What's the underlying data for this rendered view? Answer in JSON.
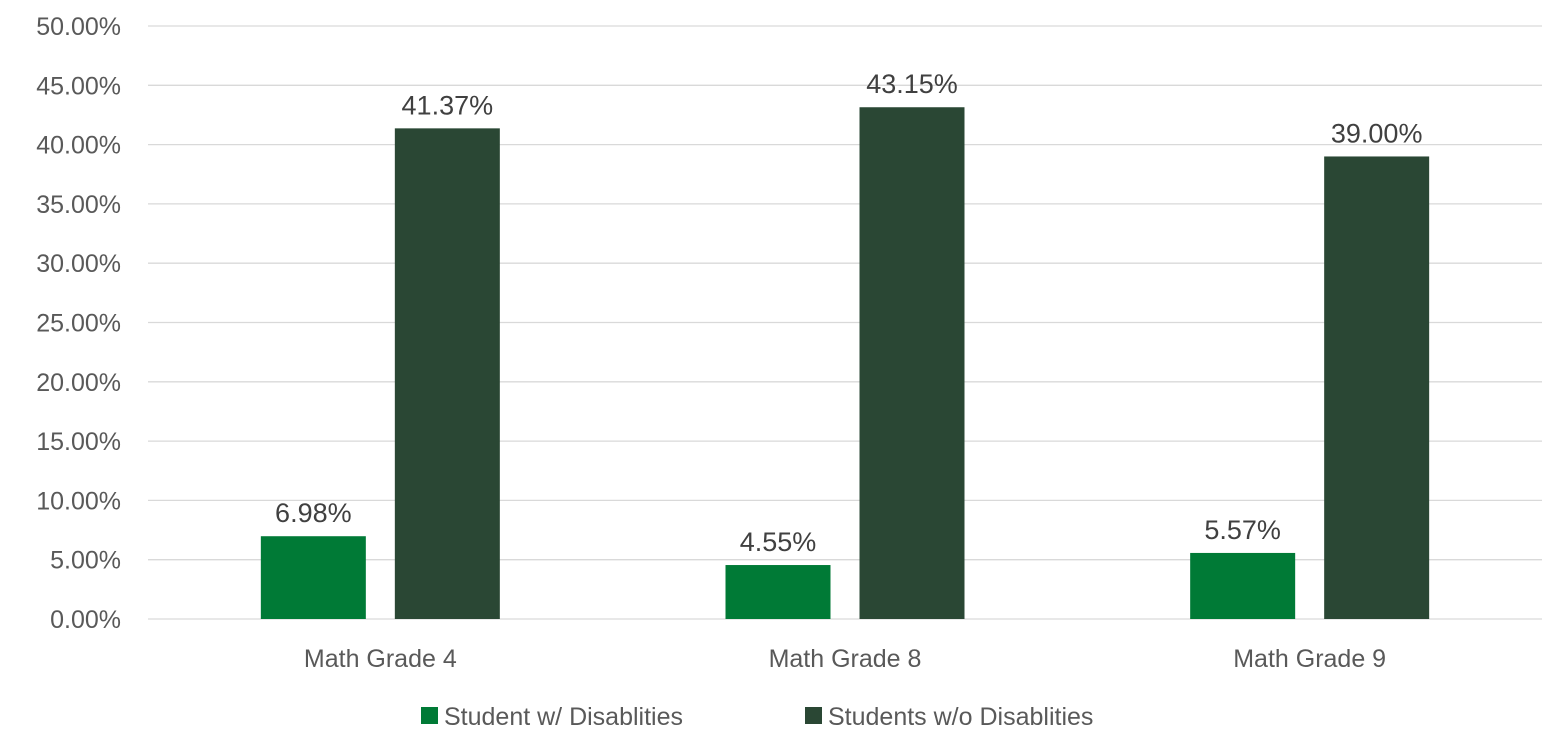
{
  "chart_data": {
    "type": "bar",
    "title": "",
    "xlabel": "",
    "ylabel": "",
    "categories": [
      "Math Grade 4",
      "Math Grade 8",
      "Math Grade 9"
    ],
    "series": [
      {
        "name": "Student w/ Disablities",
        "color": "#007A36",
        "values": [
          6.98,
          4.55,
          5.57
        ],
        "labels": [
          "6.98%",
          "4.55%",
          "5.57%"
        ]
      },
      {
        "name": "Students w/o Disablities",
        "color": "#2A4734",
        "values": [
          41.37,
          43.15,
          39.0
        ],
        "labels": [
          "41.37%",
          "43.15%",
          "39.00%"
        ]
      }
    ],
    "ylim": [
      0,
      50
    ],
    "yticks": [
      {
        "value": 0,
        "label": "0.00%"
      },
      {
        "value": 5,
        "label": "5.00%"
      },
      {
        "value": 10,
        "label": "10.00%"
      },
      {
        "value": 15,
        "label": "15.00%"
      },
      {
        "value": 20,
        "label": "20.00%"
      },
      {
        "value": 25,
        "label": "25.00%"
      },
      {
        "value": 30,
        "label": "30.00%"
      },
      {
        "value": 35,
        "label": "35.00%"
      },
      {
        "value": 40,
        "label": "40.00%"
      },
      {
        "value": 45,
        "label": "45.00%"
      },
      {
        "value": 50,
        "label": "50.00%"
      }
    ],
    "grid": true,
    "legend_position": "bottom",
    "colors": {
      "gridline": "#D9D9D9",
      "axis_text": "#595959",
      "label_text": "#404040"
    }
  }
}
